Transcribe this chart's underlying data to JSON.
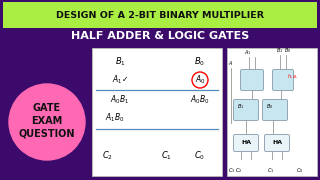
{
  "bg_color": "#3B0A6B",
  "title_bar_color": "#AAEE44",
  "title_text": "DESIGN OF A 2-BIT BINARY MULTIPLIER",
  "subtitle_text": "HALF ADDER & LOGIC GATES",
  "title_text_color": "#111111",
  "subtitle_text_color": "#FFFFFF",
  "gate_circle_color": "#FF69B4",
  "gate_text_lines": [
    "GATE",
    "EXAM",
    "QUESTION"
  ],
  "gate_text_color": "#111111",
  "table_bg": "#FFFFFF",
  "circuit_bg": "#FFFFFF",
  "gate_fill": "#C8E6F0",
  "gate_edge": "#8899AA"
}
